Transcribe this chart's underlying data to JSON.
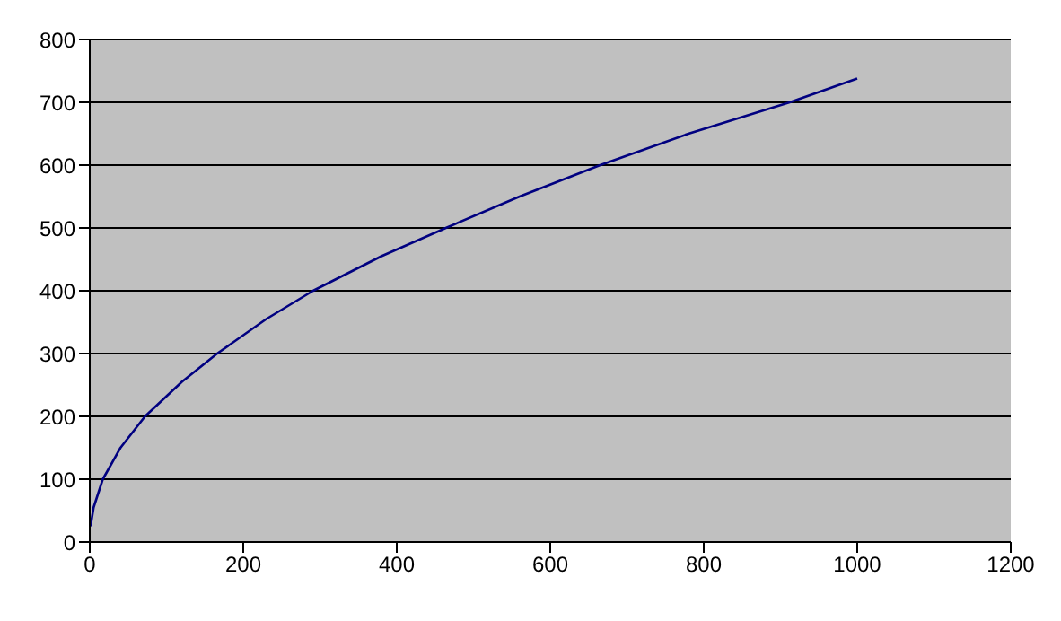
{
  "chart_data": {
    "type": "line",
    "x": [
      1,
      5,
      17,
      40,
      72,
      120,
      166,
      230,
      291,
      380,
      464,
      560,
      665,
      780,
      912,
      1000
    ],
    "series": [
      {
        "color": "#000080",
        "values": [
          25,
          55,
          100,
          150,
          200,
          255,
          300,
          355,
          400,
          455,
          500,
          550,
          600,
          650,
          700,
          738
        ]
      }
    ],
    "xlim": [
      0,
      1200
    ],
    "xticks": [
      0,
      200,
      400,
      600,
      800,
      1000,
      1200
    ],
    "ylim": [
      0,
      800
    ],
    "yticks": [
      0,
      100,
      200,
      300,
      400,
      500,
      600,
      700,
      800
    ],
    "grid": "y",
    "marker": "none",
    "line_style": "solid"
  }
}
